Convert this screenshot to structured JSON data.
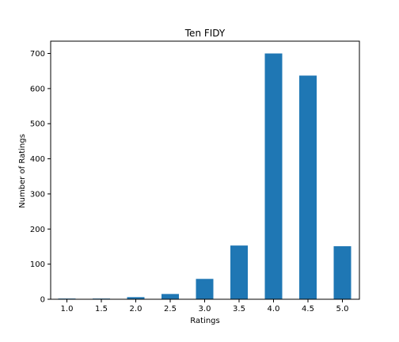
{
  "chart_data": {
    "type": "bar",
    "title": "Ten FIDY",
    "xlabel": "Ratings",
    "ylabel": "Number of Ratings",
    "categories": [
      "1.0",
      "1.5",
      "2.0",
      "2.5",
      "3.0",
      "3.5",
      "4.0",
      "4.5",
      "5.0"
    ],
    "values": [
      2,
      2,
      6,
      15,
      58,
      153,
      700,
      637,
      151
    ],
    "ylim": [
      0,
      735
    ],
    "yticks": [
      "0",
      "100",
      "200",
      "300",
      "400",
      "500",
      "600",
      "700"
    ],
    "grid": false,
    "bar_color": "#1f77b4"
  }
}
